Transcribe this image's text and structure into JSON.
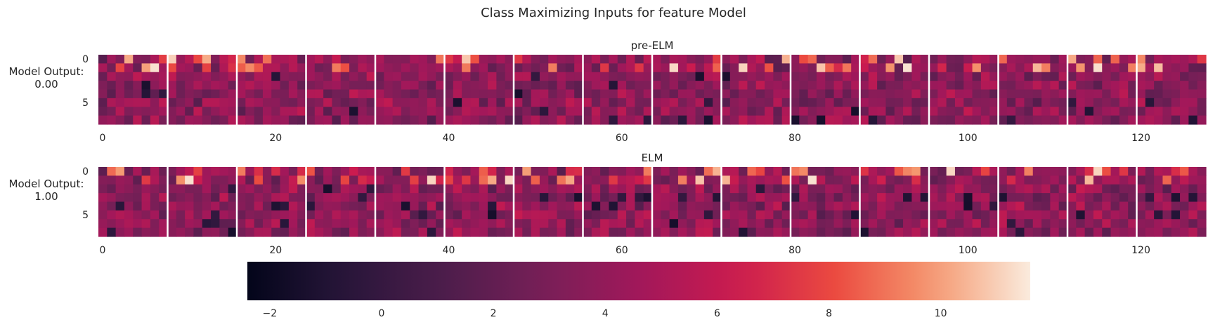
{
  "chart_data": {
    "type": "heatmap",
    "title": "Class Maximizing Inputs for feature Model",
    "colormap": "rocket",
    "color_range": [
      -2.4,
      11.6
    ],
    "colorbar": {
      "ticks": [
        -2,
        0,
        2,
        4,
        6,
        8,
        10
      ],
      "tick_labels": [
        "−2",
        "0",
        "2",
        "4",
        "6",
        "8",
        "10"
      ],
      "orientation": "horizontal",
      "placement": "bottom"
    },
    "grid": false,
    "panels": [
      {
        "title": "pre-ELM",
        "row_label": [
          "Model Output:",
          "0.00"
        ],
        "x_range": [
          0,
          128
        ],
        "y_range": [
          0,
          8
        ],
        "x_ticks": [
          0,
          20,
          40,
          60,
          80,
          100,
          120
        ],
        "x_tick_labels": [
          "0",
          "20",
          "40",
          "60",
          "80",
          "100",
          "120"
        ],
        "y_ticks": [
          0,
          5
        ],
        "y_tick_labels": [
          "0",
          "5"
        ],
        "blocks": 16,
        "block_width": 8,
        "block_separators": "white",
        "seed": 7
      },
      {
        "title": "ELM",
        "row_label": [
          "Model Output:",
          "1.00"
        ],
        "x_range": [
          0,
          128
        ],
        "y_range": [
          0,
          8
        ],
        "x_ticks": [
          0,
          20,
          40,
          60,
          80,
          100,
          120
        ],
        "x_tick_labels": [
          "0",
          "20",
          "40",
          "60",
          "80",
          "100",
          "120"
        ],
        "y_ticks": [
          0,
          5
        ],
        "y_tick_labels": [
          "0",
          "5"
        ],
        "blocks": 16,
        "block_width": 8,
        "block_separators": "white",
        "seed": 23
      }
    ]
  }
}
